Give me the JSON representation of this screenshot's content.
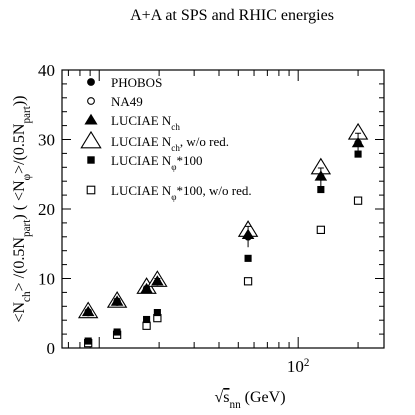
{
  "chart_data": {
    "type": "scatter",
    "title": "A+A at SPS and RHIC energies",
    "xlabel": {
      "prefix": "√",
      "main": "s",
      "sub": "nn",
      "suffix": " (GeV)"
    },
    "ylabel": "<Nch>/(0.5Npart) (<Nφ>/(0.5Npart))",
    "ylabel_parts": [
      {
        "t": "<N",
        "s": "n"
      },
      {
        "t": "ch",
        "s": "sub"
      },
      {
        "t": "> /(0.5N",
        "s": "n"
      },
      {
        "t": "part",
        "s": "sub"
      },
      {
        "t": ") ( <N",
        "s": "n"
      },
      {
        "t": "φ",
        "s": "sub"
      },
      {
        "t": ">/(0.5N",
        "s": "n"
      },
      {
        "t": "part",
        "s": "sub"
      },
      {
        "t": "))",
        "s": "n"
      }
    ],
    "x_scale": "log",
    "xlim": [
      6.5,
      270
    ],
    "ylim": [
      0,
      40
    ],
    "yticks": [
      0,
      10,
      20,
      30,
      40
    ],
    "xticks": [
      {
        "value": 100,
        "base": "10",
        "exp": "2"
      }
    ],
    "grid": false,
    "legend_position": "top-left",
    "series": [
      {
        "name": "PHOBOS",
        "label_parts": [
          {
            "t": "PHOBOS",
            "s": "n"
          }
        ],
        "marker": "filled-circle",
        "x": [
          8.8,
          12.3,
          17.3,
          19.6,
          56,
          130,
          200
        ],
        "y": [
          5.1,
          6.7,
          8.4,
          9.5,
          16.0,
          24.6,
          29.5
        ],
        "yerr": [
          0.4,
          0.4,
          0.5,
          0.5,
          1.5,
          1.3,
          1.4
        ]
      },
      {
        "name": "NA49",
        "label_parts": [
          {
            "t": "NA49",
            "s": "n"
          }
        ],
        "marker": "open-circle",
        "x": [
          8.8,
          12.3,
          17.3
        ],
        "y": [
          5.2,
          6.6,
          8.5
        ]
      },
      {
        "name": "LUCIAE Nch",
        "label_parts": [
          {
            "t": "LUCIAE N",
            "s": "n"
          },
          {
            "t": "ch",
            "s": "sub"
          }
        ],
        "marker": "filled-triangle",
        "x": [
          8.8,
          12.3,
          17.3,
          19.6,
          56,
          130,
          200
        ],
        "y": [
          5.2,
          6.7,
          8.5,
          9.6,
          16.3,
          24.7,
          29.5
        ]
      },
      {
        "name": "LUCIAE Nch, w/o red.",
        "label_parts": [
          {
            "t": "LUCIAE N",
            "s": "n"
          },
          {
            "t": "ch",
            "s": "sub"
          },
          {
            "t": ", w/o red.",
            "s": "n"
          }
        ],
        "marker": "open-triangle",
        "x": [
          8.8,
          12.3,
          17.3,
          19.6,
          56,
          130,
          200
        ],
        "y": [
          5.3,
          6.8,
          8.8,
          9.8,
          17.0,
          26.0,
          31.0
        ]
      },
      {
        "name": "LUCIAE Nφ*100",
        "label_parts": [
          {
            "t": "LUCIAE N",
            "s": "n"
          },
          {
            "t": "φ",
            "s": "sub"
          },
          {
            "t": "*100",
            "s": "n"
          }
        ],
        "marker": "filled-square",
        "x": [
          8.8,
          12.3,
          17.3,
          19.6,
          56,
          130,
          200
        ],
        "y": [
          1.0,
          2.3,
          4.1,
          5.1,
          12.9,
          22.8,
          27.9
        ]
      },
      {
        "name": "LUCIAE Nφ*100, w/o red.",
        "label_parts": [
          {
            "t": "LUCIAE N",
            "s": "n"
          },
          {
            "t": "φ",
            "s": "sub"
          },
          {
            "t": "*100, w/o red.",
            "s": "n"
          }
        ],
        "marker": "open-square",
        "x": [
          8.8,
          12.3,
          17.3,
          19.6,
          56,
          130,
          200
        ],
        "y": [
          0.7,
          1.9,
          3.2,
          4.3,
          9.6,
          17.0,
          21.2
        ]
      }
    ]
  }
}
